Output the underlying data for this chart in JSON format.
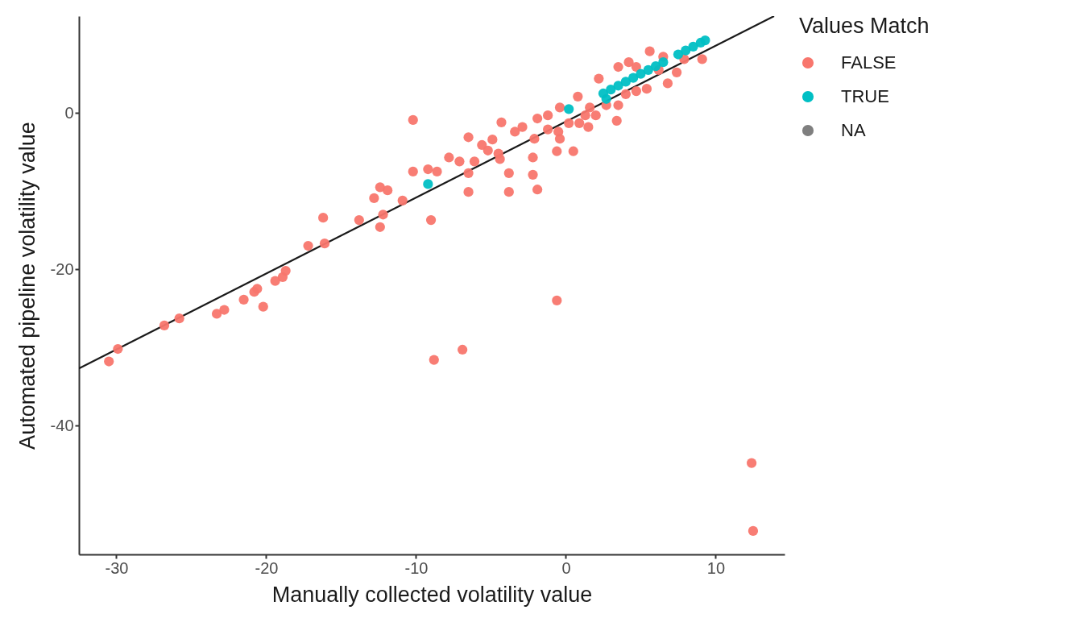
{
  "chart_data": {
    "type": "scatter",
    "xlabel": "Manually collected volatility value",
    "ylabel": "Automated pipeline volatility value",
    "legend_title": "Values Match",
    "legend": "right",
    "marker": "circle",
    "xlim": [
      -32.5,
      14.6
    ],
    "ylim": [
      -56.5,
      12.4
    ],
    "xticks": [
      -30,
      -20,
      -10,
      0,
      10
    ],
    "yticks": [
      -40,
      -20,
      0
    ],
    "series": [
      {
        "name": "FALSE",
        "color": "#f8766d",
        "x": [
          -30.5,
          -29.9,
          -26.8,
          -25.8,
          -23.3,
          -22.8,
          -21.5,
          -20.8,
          -20.6,
          -20.2,
          -19.4,
          -18.9,
          -18.7,
          -17.2,
          -16.1,
          -16.2,
          -13.8,
          -12.4,
          -12.2,
          -12.8,
          -12.4,
          -11.9,
          -10.9,
          -10.2,
          -10.2,
          -9.2,
          -9.0,
          -8.8,
          -6.9,
          -0.6,
          12.4,
          12.5,
          -6.5,
          -6.5,
          -6.5,
          -7.8,
          -7.1,
          -5.6,
          -4.9,
          -4.3,
          -4.4,
          -3.8,
          -3.8,
          -3.4,
          -2.2,
          -2.2,
          -1.9,
          -2.1,
          -1.9,
          -1.2,
          -0.4,
          -0.5,
          -0.4,
          -0.6,
          0.5,
          0.8,
          0.9,
          1.5,
          2.0,
          2.2,
          2.7,
          3.4,
          3.5,
          4.2,
          4.0,
          4.7,
          5.4,
          5.6,
          6.5,
          6.8,
          7.4,
          7.9,
          9.1,
          1.3,
          0.2,
          -1.2,
          -2.9,
          -5.2,
          -4.5,
          -6.1,
          -8.6,
          1.6,
          4.7,
          3.5,
          6.2
        ],
        "values": [
          -31.8,
          -30.2,
          -27.2,
          -26.3,
          -25.7,
          -25.2,
          -23.9,
          -22.9,
          -22.5,
          -24.8,
          -21.5,
          -21.0,
          -20.2,
          -17.0,
          -16.7,
          -13.4,
          -13.7,
          -14.6,
          -13.0,
          -10.9,
          -9.5,
          -9.9,
          -11.2,
          -0.9,
          -7.5,
          -7.2,
          -13.7,
          -31.6,
          -30.3,
          -24.0,
          -44.8,
          -53.5,
          -3.1,
          -7.7,
          -10.1,
          -5.7,
          -6.2,
          -4.1,
          -3.4,
          -1.2,
          -5.9,
          -7.7,
          -10.1,
          -2.4,
          -5.7,
          -7.9,
          -9.8,
          -3.3,
          -0.7,
          -0.3,
          0.7,
          -2.4,
          -3.3,
          -4.9,
          -4.9,
          2.1,
          -1.3,
          -1.8,
          -0.3,
          4.4,
          1.0,
          -1.0,
          5.9,
          6.5,
          2.4,
          2.8,
          3.1,
          7.9,
          7.2,
          3.8,
          5.2,
          6.9,
          6.9,
          -0.3,
          -1.3,
          -2.1,
          -1.8,
          -4.8,
          -5.2,
          -6.2,
          -7.5,
          0.7,
          5.9,
          1.0,
          5.5
        ]
      },
      {
        "name": "TRUE",
        "color": "#00bfc4",
        "x": [
          -9.2,
          0.2,
          2.5,
          2.7,
          3.0,
          3.5,
          4.0,
          4.5,
          5.0,
          5.5,
          6.0,
          6.5,
          7.5,
          8.0,
          8.5,
          9.0,
          9.3
        ],
        "values": [
          -9.1,
          0.5,
          2.5,
          1.8,
          3.0,
          3.5,
          4.0,
          4.5,
          5.0,
          5.5,
          6.0,
          6.5,
          7.5,
          8.0,
          8.5,
          9.0,
          9.3
        ]
      },
      {
        "name": "NA",
        "color": "#7f7f7f"
      },
      {
        "type": "line",
        "color": "#1a1a1a",
        "line_style": "solid",
        "marker": "none",
        "x": [
          -32.5,
          13.9
        ],
        "values": [
          -32.7,
          12.4
        ]
      }
    ]
  }
}
